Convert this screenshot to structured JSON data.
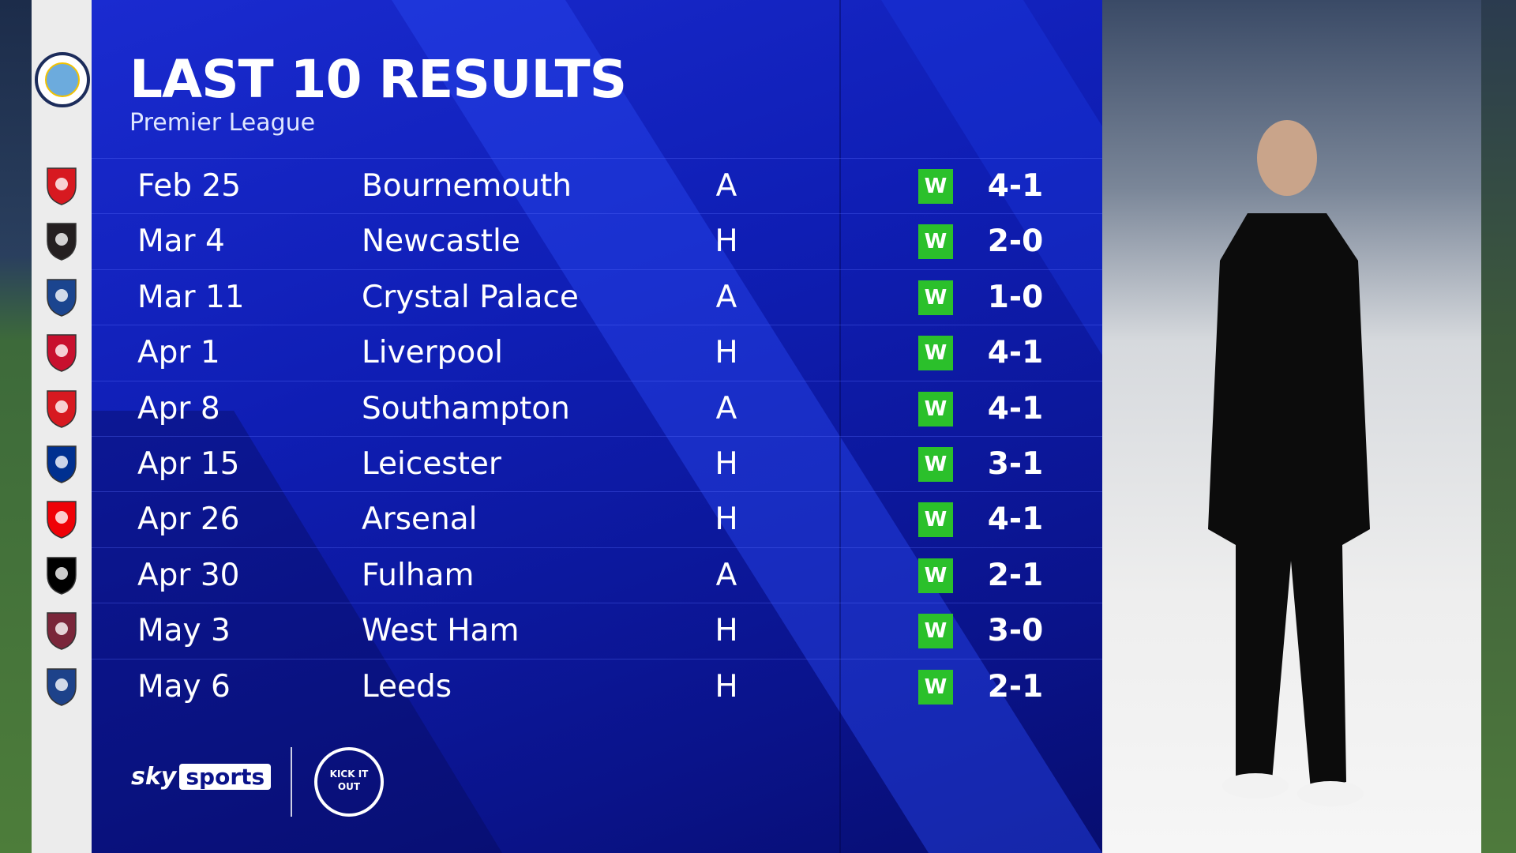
{
  "header": {
    "title": "LAST 10 RESULTS",
    "subtitle": "Premier League"
  },
  "team_crest": "manchester-city-crest",
  "results": [
    {
      "date": "Feb 25",
      "opponent": "Bournemouth",
      "venue": "A",
      "result": "W",
      "score": "4-1",
      "crest": "bournemouth-crest",
      "color": "#d71920"
    },
    {
      "date": "Mar 4",
      "opponent": "Newcastle",
      "venue": "H",
      "result": "W",
      "score": "2-0",
      "crest": "newcastle-crest",
      "color": "#241f20"
    },
    {
      "date": "Mar 11",
      "opponent": "Crystal Palace",
      "venue": "A",
      "result": "W",
      "score": "1-0",
      "crest": "crystal-palace-crest",
      "color": "#1b458f"
    },
    {
      "date": "Apr 1",
      "opponent": "Liverpool",
      "venue": "H",
      "result": "W",
      "score": "4-1",
      "crest": "liverpool-crest",
      "color": "#c8102e"
    },
    {
      "date": "Apr 8",
      "opponent": "Southampton",
      "venue": "A",
      "result": "W",
      "score": "4-1",
      "crest": "southampton-crest",
      "color": "#d71920"
    },
    {
      "date": "Apr 15",
      "opponent": "Leicester",
      "venue": "H",
      "result": "W",
      "score": "3-1",
      "crest": "leicester-crest",
      "color": "#003090"
    },
    {
      "date": "Apr 26",
      "opponent": "Arsenal",
      "venue": "H",
      "result": "W",
      "score": "4-1",
      "crest": "arsenal-crest",
      "color": "#ef0107"
    },
    {
      "date": "Apr 30",
      "opponent": "Fulham",
      "venue": "A",
      "result": "W",
      "score": "2-1",
      "crest": "fulham-crest",
      "color": "#000000"
    },
    {
      "date": "May 3",
      "opponent": "West Ham",
      "venue": "H",
      "result": "W",
      "score": "3-0",
      "crest": "west-ham-crest",
      "color": "#7a263a"
    },
    {
      "date": "May 6",
      "opponent": "Leeds",
      "venue": "H",
      "result": "W",
      "score": "2-1",
      "crest": "leeds-crest",
      "color": "#1d428a"
    }
  ],
  "colors": {
    "win": "#2bc02b",
    "panel": "#0f1eb4"
  },
  "branding": {
    "sky": "sky",
    "sports": "sports",
    "kick_it_out": "KICK IT OUT"
  }
}
